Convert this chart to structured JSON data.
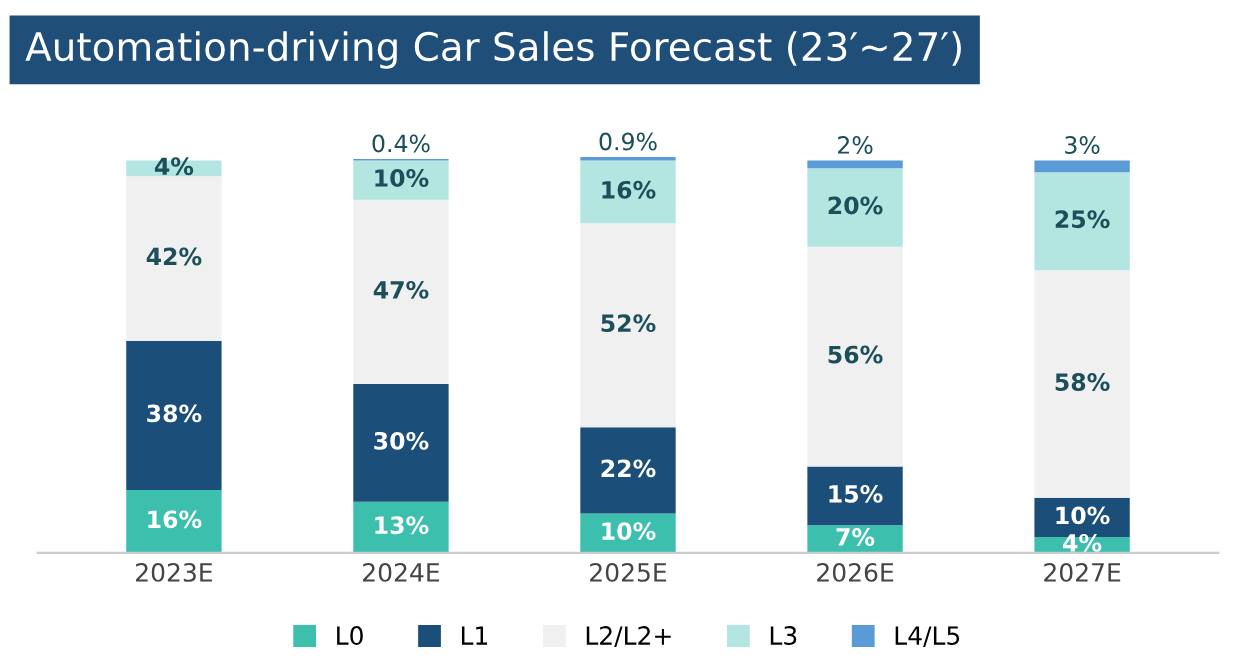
{
  "chart_data": {
    "type": "bar",
    "title": "Automation-driving Car Sales Forecast (23′~27′)",
    "stacked": true,
    "legend": "bottom",
    "tick_labels": "x",
    "categories": [
      "2023E",
      "2024E",
      "2025E",
      "2026E",
      "2027E"
    ],
    "series": [
      {
        "name": "L0",
        "color": "#3dbfae",
        "values": [
          16,
          13,
          10,
          7,
          4
        ],
        "value_labels": [
          "16%",
          "13%",
          "10%",
          "7%",
          "4%"
        ]
      },
      {
        "name": "L1",
        "color": "#1b4f7a",
        "values": [
          38,
          30,
          22,
          15,
          10
        ],
        "value_labels": [
          "38%",
          "30%",
          "22%",
          "15%",
          "10%"
        ]
      },
      {
        "name": "L2/L2+",
        "color": "#f0f0f0",
        "values": [
          42,
          47,
          52,
          56,
          58
        ],
        "value_labels": [
          "42%",
          "47%",
          "52%",
          "56%",
          "58%"
        ]
      },
      {
        "name": "L3",
        "color": "#b3e6e0",
        "values": [
          4,
          10,
          16,
          20,
          25
        ],
        "value_labels": [
          "4%",
          "10%",
          "16%",
          "20%",
          "25%"
        ]
      },
      {
        "name": "L4/L5",
        "color": "#5b9bd5",
        "values": [
          null,
          0.4,
          0.9,
          2,
          3
        ],
        "value_labels": [
          null,
          "0.4%",
          "0.9%",
          "2%",
          "3%"
        ]
      }
    ]
  }
}
